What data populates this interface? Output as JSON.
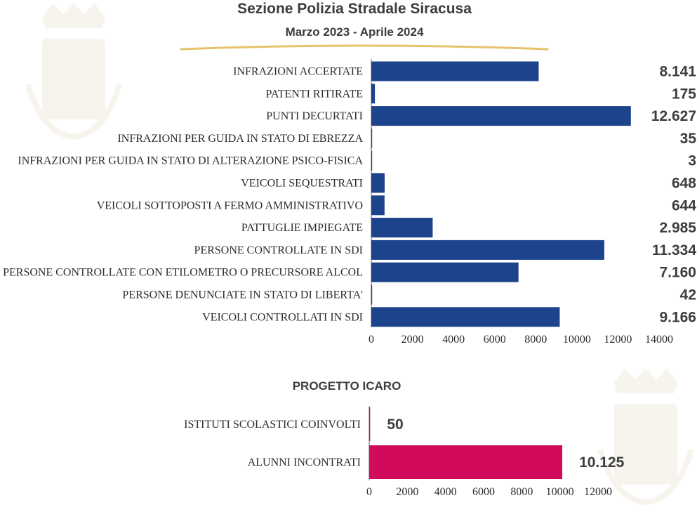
{
  "header": {
    "title": "Sezione Polizia Stradale Siracusa",
    "subtitle": "Marzo 2023 - Aprile 2024"
  },
  "colors": {
    "primary_bar": "#1c438c",
    "icaro_bar": "#d10a5c",
    "value_text": "#3d3d3d",
    "gold_underline": "#e6c36b"
  },
  "icaro": {
    "title": "PROGETTO ICARO"
  },
  "chart_data": [
    {
      "type": "bar",
      "orientation": "horizontal",
      "title": "",
      "xlabel": "",
      "ylabel": "",
      "xlim": [
        0,
        14000
      ],
      "ticks": [
        0,
        2000,
        4000,
        6000,
        8000,
        10000,
        12000,
        14000
      ],
      "categories": [
        "INFRAZIONI ACCERTATE",
        "PATENTI RITIRATE",
        "PUNTI DECURTATI",
        "INFRAZIONI PER GUIDA IN STATO DI EBREZZA",
        "INFRAZIONI PER GUIDA IN STATO DI ALTERAZIONE PSICO-FISICA",
        "VEICOLI SEQUESTRATI",
        "VEICOLI SOTTOPOSTI A FERMO AMMINISTRATIVO",
        "PATTUGLIE IMPIEGATE",
        "PERSONE CONTROLLATE IN SDI",
        "PERSONE CONTROLLATE CON ETILOMETRO O PRECURSORE ALCOL",
        "PERSONE DENUNCIATE IN STATO DI LIBERTA'",
        "VEICOLI CONTROLLATI IN SDI"
      ],
      "values": [
        8141,
        175,
        12627,
        35,
        3,
        648,
        644,
        2985,
        11334,
        7160,
        42,
        9166
      ],
      "value_labels": [
        "8.141",
        "175",
        "12.627",
        "35",
        "3",
        "648",
        "644",
        "2.985",
        "11.334",
        "7.160",
        "42",
        "9.166"
      ],
      "grid": false,
      "legend": "none"
    },
    {
      "type": "bar",
      "orientation": "horizontal",
      "title": "PROGETTO ICARO",
      "xlabel": "",
      "ylabel": "",
      "xlim": [
        0,
        12000
      ],
      "ticks": [
        0,
        2000,
        4000,
        6000,
        8000,
        10000,
        12000
      ],
      "categories": [
        "ISTITUTI SCOLASTICI COINVOLTI",
        "ALUNNI INCONTRATI"
      ],
      "values": [
        50,
        10125
      ],
      "value_labels": [
        "50",
        "10.125"
      ],
      "grid": false,
      "legend": "none"
    }
  ]
}
